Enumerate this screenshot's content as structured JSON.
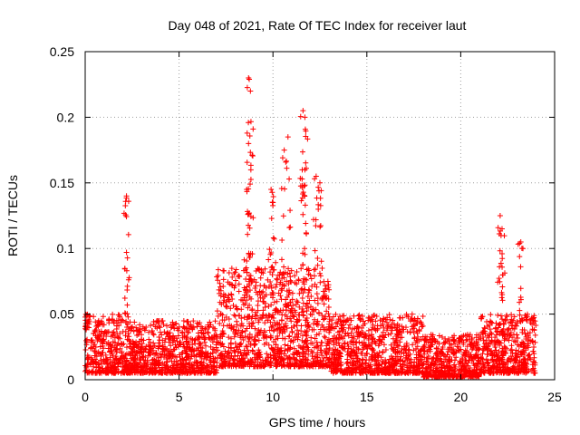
{
  "chart_data": {
    "type": "scatter",
    "title": "Day 048 of 2021, Rate Of TEC Index for receiver laut",
    "xlabel": "GPS time / hours",
    "ylabel": "ROTI / TECUs",
    "xlim": [
      0,
      25
    ],
    "ylim": [
      0,
      0.25
    ],
    "xticks": [
      0,
      5,
      10,
      15,
      20,
      25
    ],
    "yticks": [
      0,
      0.05,
      0.1,
      0.15,
      0.2,
      0.25
    ],
    "xtick_labels": [
      "0",
      "5",
      "10",
      "15",
      "20",
      "25"
    ],
    "ytick_labels": [
      "0",
      "0.05",
      "0.1",
      "0.15",
      "0.2",
      "0.25"
    ],
    "grid": true,
    "marker": "+",
    "color": "#ff0000",
    "series": [
      {
        "name": "ROTI",
        "x_range": [
          0,
          24
        ],
        "baseline_bands": [
          {
            "x": [
              0,
              2
            ],
            "low": 0.005,
            "high": 0.05
          },
          {
            "x": [
              2,
              7
            ],
            "low": 0.005,
            "high": 0.045
          },
          {
            "x": [
              7,
              13
            ],
            "low": 0.01,
            "high": 0.085
          },
          {
            "x": [
              13,
              18
            ],
            "low": 0.005,
            "high": 0.05
          },
          {
            "x": [
              18,
              21
            ],
            "low": 0.002,
            "high": 0.035
          },
          {
            "x": [
              21,
              24
            ],
            "low": 0.005,
            "high": 0.05
          }
        ],
        "peaks": [
          {
            "x": 2.2,
            "y": 0.14
          },
          {
            "x": 2.2,
            "y": 0.097
          },
          {
            "x": 8.7,
            "y": 0.23
          },
          {
            "x": 8.8,
            "y": 0.22
          },
          {
            "x": 8.7,
            "y": 0.18
          },
          {
            "x": 8.6,
            "y": 0.145
          },
          {
            "x": 9.9,
            "y": 0.145
          },
          {
            "x": 10.0,
            "y": 0.135
          },
          {
            "x": 10.6,
            "y": 0.175
          },
          {
            "x": 10.8,
            "y": 0.185
          },
          {
            "x": 11.6,
            "y": 0.205
          },
          {
            "x": 11.7,
            "y": 0.2
          },
          {
            "x": 11.7,
            "y": 0.16
          },
          {
            "x": 12.3,
            "y": 0.155
          },
          {
            "x": 12.5,
            "y": 0.15
          },
          {
            "x": 22.1,
            "y": 0.125
          },
          {
            "x": 22.2,
            "y": 0.115
          },
          {
            "x": 23.2,
            "y": 0.105
          }
        ]
      }
    ]
  }
}
